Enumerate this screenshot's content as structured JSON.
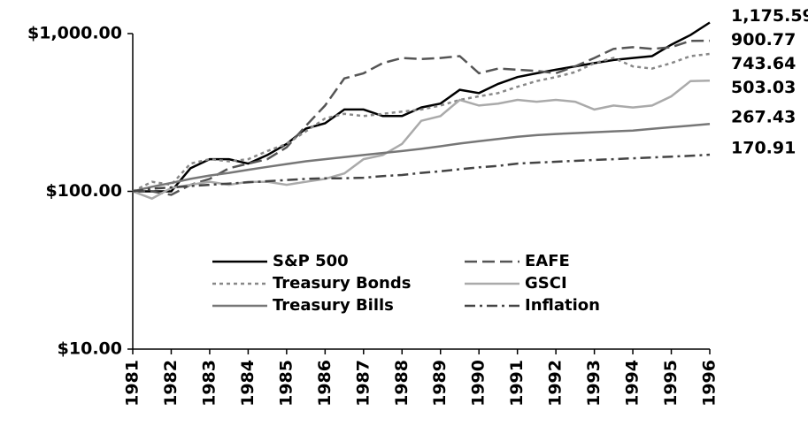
{
  "chart_data": {
    "type": "line",
    "log_scale": true,
    "legend": "center",
    "x": [
      1981,
      1981.5,
      1982,
      1982.5,
      1983,
      1983.5,
      1984,
      1984.5,
      1985,
      1985.5,
      1986,
      1986.5,
      1987,
      1987.5,
      1988,
      1988.5,
      1989,
      1989.5,
      1990,
      1990.5,
      1991,
      1991.5,
      1992,
      1992.5,
      1993,
      1993.5,
      1994,
      1994.5,
      1995,
      1995.5,
      1996
    ],
    "xlim": [
      1981,
      1996
    ],
    "xticks": [
      1981,
      1982,
      1983,
      1984,
      1985,
      1986,
      1987,
      1988,
      1989,
      1990,
      1991,
      1992,
      1993,
      1994,
      1995,
      1996
    ],
    "ylim": [
      10,
      1000
    ],
    "yticks": [
      {
        "value": 10,
        "label": "$10.00"
      },
      {
        "value": 100,
        "label": "$100.00"
      },
      {
        "value": 1000,
        "label": "$1,000.00"
      }
    ],
    "series": [
      {
        "name": "S&P 500",
        "color": "#000000",
        "dash": "solid",
        "values": [
          100,
          100,
          100,
          140,
          160,
          160,
          150,
          170,
          200,
          250,
          270,
          330,
          330,
          300,
          300,
          340,
          360,
          440,
          420,
          480,
          530,
          560,
          590,
          620,
          650,
          680,
          700,
          720,
          850,
          980,
          1175.59
        ],
        "value_labels": [
          null,
          null,
          null,
          null,
          null,
          null,
          null,
          null,
          null,
          null,
          null,
          null,
          null,
          null,
          null,
          null,
          null,
          null,
          null,
          null,
          null,
          null,
          null,
          null,
          null,
          null,
          null,
          null,
          null,
          null,
          "1,175.59"
        ]
      },
      {
        "name": "EAFE",
        "color": "#555555",
        "dash": "long",
        "values": [
          100,
          100,
          95,
          110,
          120,
          140,
          150,
          160,
          190,
          260,
          350,
          520,
          560,
          650,
          700,
          690,
          700,
          720,
          560,
          600,
          590,
          580,
          560,
          620,
          700,
          800,
          820,
          800,
          820,
          900,
          900.77
        ],
        "value_labels": [
          null,
          null,
          null,
          null,
          null,
          null,
          null,
          null,
          null,
          null,
          null,
          null,
          null,
          null,
          null,
          null,
          null,
          null,
          null,
          null,
          null,
          null,
          null,
          null,
          null,
          null,
          null,
          null,
          null,
          null,
          "900.77"
        ]
      },
      {
        "name": "Treasury Bonds",
        "color": "#888888",
        "dash": "dot",
        "values": [
          100,
          115,
          110,
          150,
          160,
          155,
          160,
          180,
          200,
          240,
          290,
          310,
          300,
          310,
          320,
          330,
          350,
          380,
          400,
          420,
          460,
          500,
          530,
          570,
          650,
          700,
          620,
          600,
          650,
          720,
          743.64
        ],
        "value_labels": [
          null,
          null,
          null,
          null,
          null,
          null,
          null,
          null,
          null,
          null,
          null,
          null,
          null,
          null,
          null,
          null,
          null,
          null,
          null,
          null,
          null,
          null,
          null,
          null,
          null,
          null,
          null,
          null,
          null,
          null,
          "743.64"
        ]
      },
      {
        "name": "GSCI",
        "color": "#aaaaaa",
        "dash": "solid",
        "values": [
          100,
          90,
          105,
          110,
          115,
          110,
          115,
          115,
          110,
          115,
          120,
          130,
          160,
          170,
          200,
          280,
          300,
          380,
          350,
          360,
          380,
          370,
          380,
          370,
          330,
          350,
          340,
          350,
          400,
          500,
          503.03
        ],
        "value_labels": [
          null,
          null,
          null,
          null,
          null,
          null,
          null,
          null,
          null,
          null,
          null,
          null,
          null,
          null,
          null,
          null,
          null,
          null,
          null,
          null,
          null,
          null,
          null,
          null,
          null,
          null,
          null,
          null,
          null,
          null,
          "503.03"
        ]
      },
      {
        "name": "Treasury Bills",
        "color": "#777777",
        "dash": "solid",
        "values": [
          100,
          107,
          113,
          120,
          126,
          131,
          137,
          143,
          149,
          155,
          160,
          165,
          170,
          175,
          180,
          186,
          193,
          201,
          208,
          215,
          222,
          227,
          231,
          234,
          237,
          240,
          243,
          249,
          255,
          261,
          267.43
        ],
        "value_labels": [
          null,
          null,
          null,
          null,
          null,
          null,
          null,
          null,
          null,
          null,
          null,
          null,
          null,
          null,
          null,
          null,
          null,
          null,
          null,
          null,
          null,
          null,
          null,
          null,
          null,
          null,
          null,
          null,
          null,
          null,
          "267.43"
        ]
      },
      {
        "name": "Inflation",
        "color": "#444444",
        "dash": "dashdot",
        "values": [
          100,
          104,
          106,
          108,
          110,
          112,
          114,
          116,
          118,
          120,
          121,
          121,
          122,
          125,
          127,
          131,
          134,
          138,
          142,
          145,
          150,
          152,
          154,
          156,
          158,
          160,
          162,
          164,
          166,
          168,
          170.91
        ],
        "value_labels": [
          null,
          null,
          null,
          null,
          null,
          null,
          null,
          null,
          null,
          null,
          null,
          null,
          null,
          null,
          null,
          null,
          null,
          null,
          null,
          null,
          null,
          null,
          null,
          null,
          null,
          null,
          null,
          null,
          null,
          null,
          "170.91"
        ]
      }
    ]
  }
}
